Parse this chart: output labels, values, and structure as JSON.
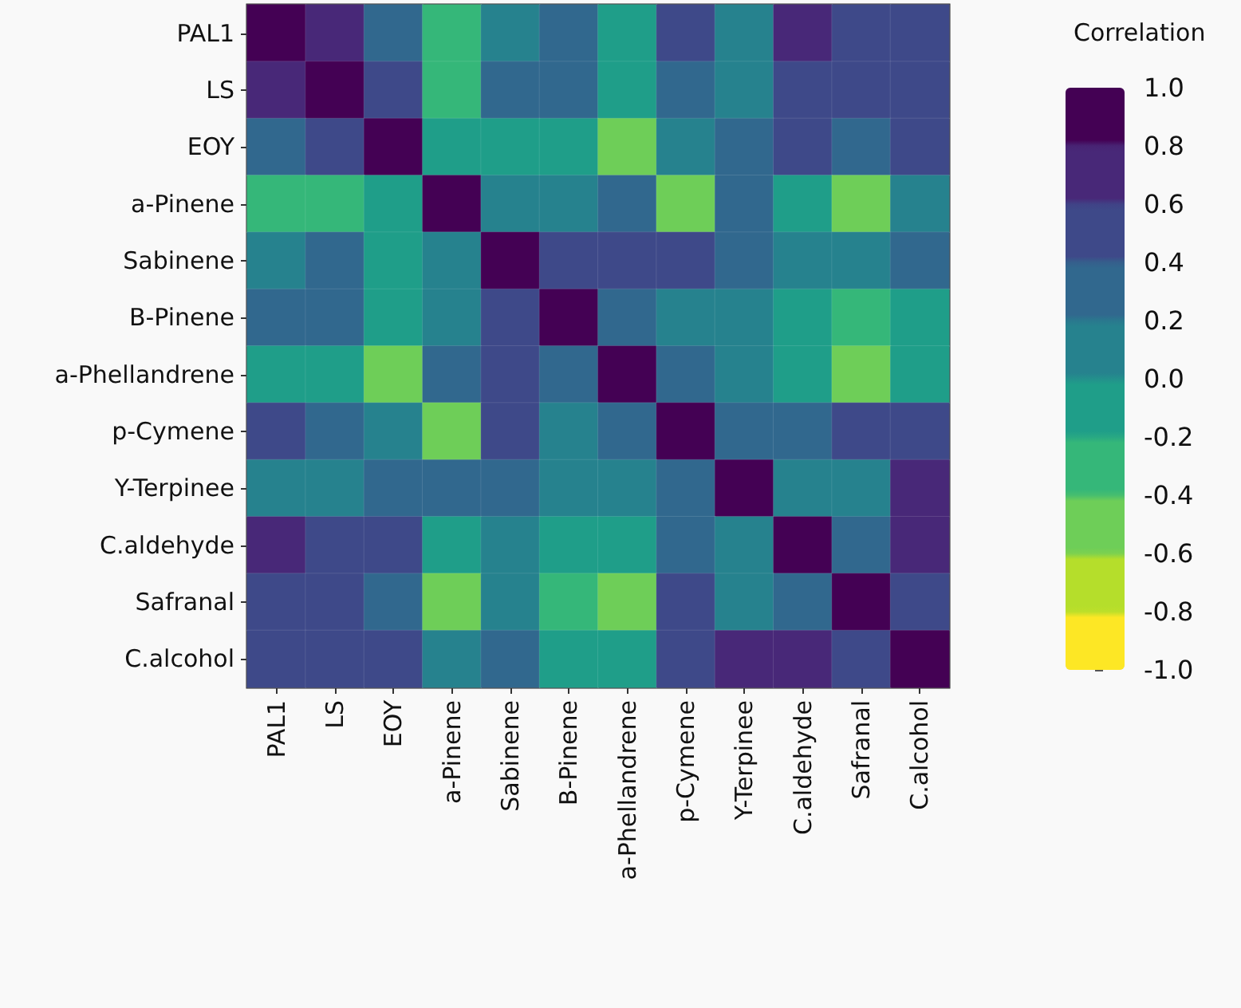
{
  "chart_data": {
    "type": "heatmap",
    "clabel": "Correlation",
    "categories": [
      "PAL1",
      "LS",
      "EOY",
      "a-Pinene",
      "Sabinene",
      "B-Pinene",
      "a-Phellandrene",
      "p-Cymene",
      "Y-Terpinee",
      "C.aldehyde",
      "Safranal",
      "C.alcohol"
    ],
    "y_categories": [
      "PAL1",
      "LS",
      "EOY",
      "a-Pinene",
      "Sabinene",
      "B-Pinene",
      "a-Phellandrene",
      "p-Cymene",
      "Y-Terpinee",
      "C.aldehyde",
      "Safranal",
      "C.alcohol"
    ],
    "cells": [
      [
        1,
        0.7,
        0.3,
        -0.3,
        0.1,
        0.3,
        -0.1,
        0.5,
        0.1,
        0.7,
        0.5,
        0.5
      ],
      [
        0.7,
        1,
        0.5,
        -0.3,
        0.3,
        0.3,
        -0.1,
        0.3,
        0.1,
        0.5,
        0.5,
        0.5
      ],
      [
        0.3,
        0.5,
        1,
        -0.1,
        -0.1,
        -0.1,
        -0.5,
        0.1,
        0.3,
        0.5,
        0.3,
        0.5
      ],
      [
        -0.3,
        -0.3,
        -0.1,
        1,
        0.1,
        0.1,
        0.3,
        -0.5,
        0.3,
        -0.1,
        -0.5,
        0.1
      ],
      [
        0.1,
        0.3,
        -0.1,
        0.1,
        1,
        0.5,
        0.5,
        0.5,
        0.3,
        0.1,
        0.1,
        0.3
      ],
      [
        0.3,
        0.3,
        -0.1,
        0.1,
        0.5,
        1,
        0.3,
        0.1,
        0.1,
        -0.1,
        -0.3,
        -0.1
      ],
      [
        -0.1,
        -0.1,
        -0.5,
        0.3,
        0.5,
        0.3,
        1,
        0.3,
        0.1,
        -0.1,
        -0.5,
        -0.1
      ],
      [
        0.5,
        0.3,
        0.1,
        -0.5,
        0.5,
        0.1,
        0.3,
        1,
        0.3,
        0.3,
        0.5,
        0.5
      ],
      [
        0.1,
        0.1,
        0.3,
        0.3,
        0.3,
        0.1,
        0.1,
        0.3,
        1,
        0.1,
        0.1,
        0.7
      ],
      [
        0.7,
        0.5,
        0.5,
        -0.1,
        0.1,
        -0.1,
        -0.1,
        0.3,
        0.1,
        1,
        0.3,
        0.7
      ],
      [
        0.5,
        0.5,
        0.3,
        -0.5,
        0.1,
        -0.3,
        -0.5,
        0.5,
        0.1,
        0.3,
        1,
        0.5
      ],
      [
        0.5,
        0.5,
        0.5,
        0.1,
        0.3,
        -0.1,
        -0.1,
        0.5,
        0.7,
        0.7,
        0.5,
        1
      ]
    ],
    "clim": [
      -1,
      1
    ],
    "cticks": [
      {
        "value": -1,
        "label": "-1.0"
      },
      -0.8,
      -0.6,
      -0.4,
      -0.2,
      {
        "value": 0,
        "label": "0.0"
      },
      0.2,
      0.4,
      0.6,
      0.8,
      {
        "value": 1,
        "label": "1.0"
      }
    ]
  }
}
